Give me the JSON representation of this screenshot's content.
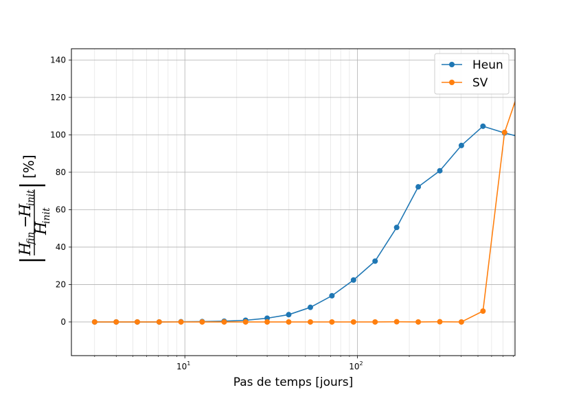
{
  "chart_data": {
    "type": "line",
    "title": "",
    "xlabel": "Pas de temps [jours]",
    "ylabel": {
      "numerator_main": "H",
      "numerator_sub": "fin",
      "minus": "−",
      "denominator_main": "H",
      "denominator_sub": "init",
      "unit": "[%]"
    },
    "xscale": "log",
    "xlim": [
      2.2,
      820
    ],
    "ylim": [
      -18,
      146
    ],
    "grid": true,
    "legend_position": "upper-right",
    "x_major_ticks": [
      {
        "value": 10,
        "base": "10",
        "exp": "1"
      },
      {
        "value": 100,
        "base": "10",
        "exp": "2"
      }
    ],
    "y_ticks": [
      {
        "value": 0,
        "label": "0"
      },
      {
        "value": 20,
        "label": "20"
      },
      {
        "value": 40,
        "label": "40"
      },
      {
        "value": 60,
        "label": "60"
      },
      {
        "value": 80,
        "label": "80"
      },
      {
        "value": 100,
        "label": "100"
      },
      {
        "value": 120,
        "label": "120"
      },
      {
        "value": 140,
        "label": "140"
      }
    ],
    "x": [
      3.0,
      4.0,
      5.3,
      7.1,
      9.5,
      12.6,
      16.9,
      22.5,
      30.0,
      40.0,
      53.4,
      71.2,
      95.0,
      126.7,
      169.0,
      225.4,
      300.6,
      400.9,
      534.8,
      713.3,
      951.4
    ],
    "series": [
      {
        "name": "Heun",
        "color": "#1f77b4",
        "values": [
          0,
          0,
          0,
          0,
          0.1,
          0.2,
          0.4,
          0.9,
          2.0,
          3.9,
          7.8,
          14.0,
          22.4,
          32.5,
          50.5,
          72.2,
          80.8,
          94.3,
          104.6,
          101.0,
          98.0
        ]
      },
      {
        "name": "SV",
        "color": "#ff7f0e",
        "values": [
          0,
          0,
          0,
          0,
          0,
          0,
          0,
          0,
          0,
          0,
          0,
          0,
          0,
          0,
          0.1,
          0,
          0.1,
          0,
          5.8,
          101.3,
          135.0
        ]
      }
    ]
  }
}
